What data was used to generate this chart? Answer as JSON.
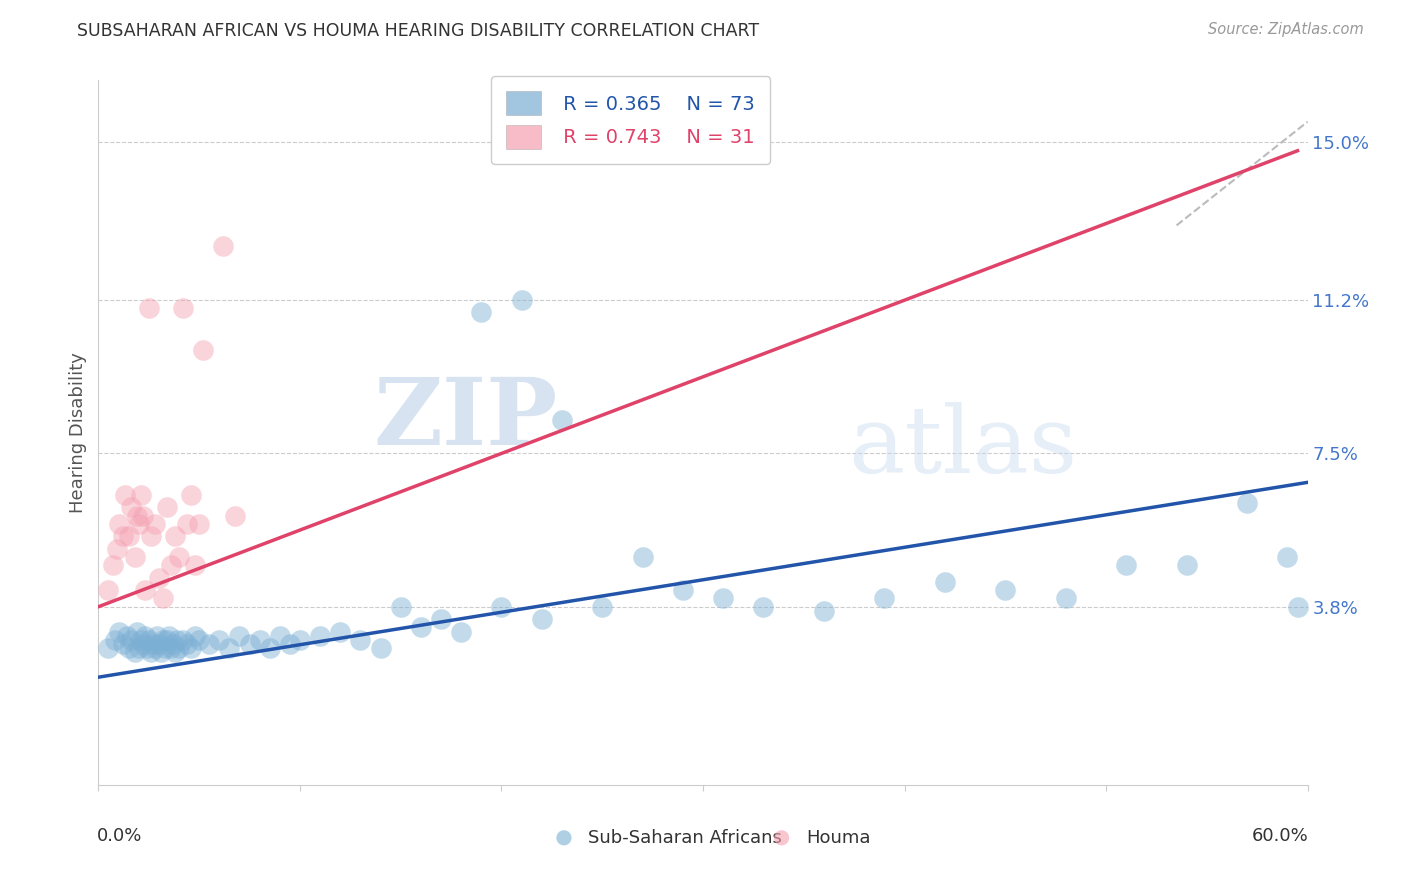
{
  "title": "SUBSAHARAN AFRICAN VS HOUMA HEARING DISABILITY CORRELATION CHART",
  "source": "Source: ZipAtlas.com",
  "ylabel": "Hearing Disability",
  "yticks": [
    0.0,
    0.038,
    0.075,
    0.112,
    0.15
  ],
  "ytick_labels": [
    "",
    "3.8%",
    "7.5%",
    "11.2%",
    "15.0%"
  ],
  "xlim": [
    0.0,
    0.6
  ],
  "ylim": [
    -0.005,
    0.165
  ],
  "legend_blue_r": "R = 0.365",
  "legend_blue_n": "N = 73",
  "legend_pink_r": "R = 0.743",
  "legend_pink_n": "N = 31",
  "legend_label_blue": "Sub-Saharan Africans",
  "legend_label_pink": "Houma",
  "blue_color": "#7bafd4",
  "pink_color": "#f4a0b0",
  "blue_line_color": "#2255aa",
  "pink_line_color": "#e0436a",
  "watermark_zip": "ZIP",
  "watermark_atlas": "atlas",
  "blue_scatter_x": [
    0.005,
    0.008,
    0.01,
    0.012,
    0.014,
    0.015,
    0.016,
    0.018,
    0.019,
    0.02,
    0.021,
    0.022,
    0.023,
    0.024,
    0.025,
    0.026,
    0.027,
    0.028,
    0.029,
    0.03,
    0.031,
    0.032,
    0.033,
    0.034,
    0.035,
    0.036,
    0.037,
    0.038,
    0.039,
    0.04,
    0.042,
    0.044,
    0.046,
    0.048,
    0.05,
    0.055,
    0.06,
    0.065,
    0.07,
    0.075,
    0.08,
    0.085,
    0.09,
    0.095,
    0.1,
    0.11,
    0.12,
    0.13,
    0.14,
    0.15,
    0.16,
    0.17,
    0.18,
    0.19,
    0.2,
    0.21,
    0.22,
    0.23,
    0.25,
    0.27,
    0.29,
    0.31,
    0.33,
    0.36,
    0.39,
    0.42,
    0.45,
    0.48,
    0.51,
    0.54,
    0.57,
    0.59,
    0.595
  ],
  "blue_scatter_y": [
    0.028,
    0.03,
    0.032,
    0.029,
    0.031,
    0.028,
    0.03,
    0.027,
    0.032,
    0.028,
    0.03,
    0.029,
    0.031,
    0.028,
    0.03,
    0.027,
    0.029,
    0.028,
    0.031,
    0.029,
    0.027,
    0.03,
    0.028,
    0.03,
    0.031,
    0.028,
    0.029,
    0.027,
    0.03,
    0.028,
    0.03,
    0.029,
    0.028,
    0.031,
    0.03,
    0.029,
    0.03,
    0.028,
    0.031,
    0.029,
    0.03,
    0.028,
    0.031,
    0.029,
    0.03,
    0.031,
    0.032,
    0.03,
    0.028,
    0.038,
    0.033,
    0.035,
    0.032,
    0.109,
    0.038,
    0.112,
    0.035,
    0.083,
    0.038,
    0.05,
    0.042,
    0.04,
    0.038,
    0.037,
    0.04,
    0.044,
    0.042,
    0.04,
    0.048,
    0.048,
    0.063,
    0.05,
    0.038
  ],
  "pink_scatter_x": [
    0.005,
    0.007,
    0.009,
    0.01,
    0.012,
    0.013,
    0.015,
    0.016,
    0.018,
    0.019,
    0.02,
    0.021,
    0.022,
    0.023,
    0.025,
    0.026,
    0.028,
    0.03,
    0.032,
    0.034,
    0.036,
    0.038,
    0.04,
    0.042,
    0.044,
    0.046,
    0.048,
    0.05,
    0.052,
    0.062,
    0.068
  ],
  "pink_scatter_y": [
    0.042,
    0.048,
    0.052,
    0.058,
    0.055,
    0.065,
    0.055,
    0.062,
    0.05,
    0.06,
    0.058,
    0.065,
    0.06,
    0.042,
    0.11,
    0.055,
    0.058,
    0.045,
    0.04,
    0.062,
    0.048,
    0.055,
    0.05,
    0.11,
    0.058,
    0.065,
    0.048,
    0.058,
    0.1,
    0.125,
    0.06
  ],
  "blue_line_x": [
    0.0,
    0.6
  ],
  "blue_line_y": [
    0.021,
    0.068
  ],
  "pink_line_x": [
    0.0,
    0.595
  ],
  "pink_line_y": [
    0.038,
    0.148
  ],
  "diag_line_x": [
    0.535,
    0.6
  ],
  "diag_line_y": [
    0.13,
    0.155
  ]
}
